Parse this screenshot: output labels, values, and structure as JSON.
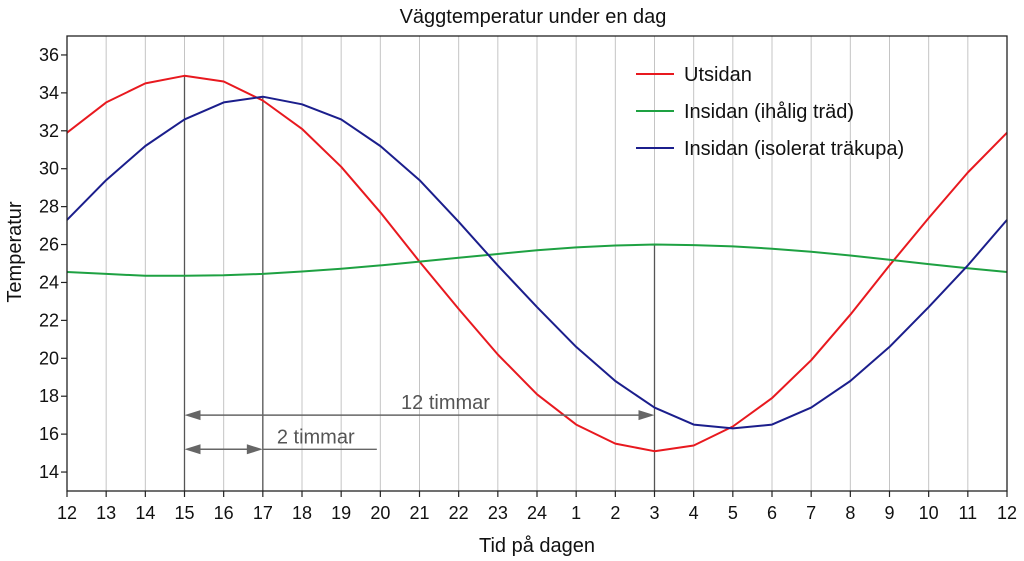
{
  "chart_data": {
    "type": "line",
    "title": "Väggtemperatur under en dag",
    "xlabel": "Tid på dagen",
    "ylabel": "Temperatur",
    "categories": [
      "12",
      "13",
      "14",
      "15",
      "16",
      "17",
      "18",
      "19",
      "20",
      "21",
      "22",
      "23",
      "24",
      "1",
      "2",
      "3",
      "4",
      "5",
      "6",
      "7",
      "8",
      "9",
      "10",
      "11",
      "12"
    ],
    "ylim": [
      13,
      37
    ],
    "yticks": [
      14,
      16,
      18,
      20,
      22,
      24,
      26,
      28,
      30,
      32,
      34,
      36
    ],
    "grid": "vertical",
    "legend_position": "top-right",
    "series": [
      {
        "name": "Utsidan",
        "color": "#e8191f",
        "values": [
          31.9,
          33.5,
          34.5,
          34.9,
          34.6,
          33.6,
          32.1,
          30.1,
          27.7,
          25.1,
          22.6,
          20.2,
          18.1,
          16.5,
          15.5,
          15.1,
          15.4,
          16.4,
          17.9,
          19.9,
          22.3,
          24.9,
          27.4,
          29.8,
          31.9
        ]
      },
      {
        "name": "Insidan (ihålig träd)",
        "color": "#1ea142",
        "values": [
          24.55,
          24.45,
          24.35,
          24.35,
          24.38,
          24.45,
          24.58,
          24.72,
          24.9,
          25.1,
          25.3,
          25.5,
          25.7,
          25.85,
          25.95,
          26.0,
          25.97,
          25.9,
          25.78,
          25.62,
          25.42,
          25.2,
          24.97,
          24.75,
          24.55
        ]
      },
      {
        "name": "Insidan (isolerat träkupa)",
        "color": "#1b1e8c",
        "values": [
          27.3,
          29.4,
          31.2,
          32.6,
          33.5,
          33.8,
          33.4,
          32.6,
          31.2,
          29.4,
          27.2,
          24.9,
          22.7,
          20.6,
          18.8,
          17.4,
          16.5,
          16.3,
          16.5,
          17.4,
          18.8,
          20.6,
          22.7,
          24.9,
          27.3
        ]
      }
    ],
    "annotations": [
      {
        "label": "12 timmar",
        "from": "15",
        "to": "3",
        "y": 17
      },
      {
        "label": "2 timmar",
        "from": "15",
        "to": "17",
        "y": 15.2
      }
    ]
  }
}
